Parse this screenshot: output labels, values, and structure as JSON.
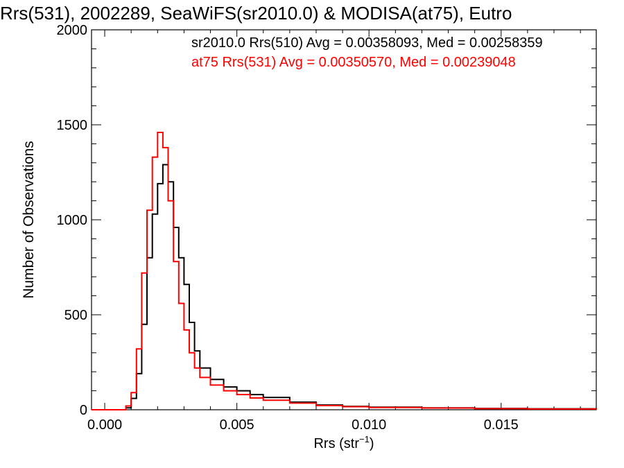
{
  "chart_data": {
    "type": "line",
    "title": "Rrs(531), 2002289, SeaWiFS(sr2010.0) & MODISA(at75), Eutro",
    "xlabel": "Rrs (str",
    "xlabel_sup": "−1",
    "xlabel_close": ")",
    "ylabel": "Number of Observations",
    "xlim": [
      -0.0005,
      0.0186
    ],
    "ylim": [
      0,
      2000
    ],
    "x_ticks": [
      0.0,
      0.005,
      0.01,
      0.015
    ],
    "x_tick_labels": [
      "0.000",
      "0.005",
      "0.010",
      "0.015"
    ],
    "y_ticks": [
      0,
      500,
      1000,
      1500,
      2000
    ],
    "y_tick_labels": [
      "0",
      "500",
      "1000",
      "1500",
      "2000"
    ],
    "legend_placement": "top-right",
    "grid": false,
    "series": [
      {
        "name": "sr2010.0 Rrs(510) Avg = 0.00358093, Med = 0.00258359",
        "color": "#000000",
        "x": [
          -0.0005,
          0.0005,
          0.0008,
          0.001,
          0.0012,
          0.0014,
          0.0016,
          0.0018,
          0.002,
          0.0022,
          0.0024,
          0.0026,
          0.0028,
          0.003,
          0.0032,
          0.0034,
          0.0036,
          0.004,
          0.0045,
          0.005,
          0.0055,
          0.006,
          0.007,
          0.008,
          0.009,
          0.01,
          0.012,
          0.014,
          0.016,
          0.0186
        ],
        "y": [
          0,
          0,
          10,
          60,
          190,
          450,
          800,
          1030,
          1190,
          1290,
          1200,
          960,
          800,
          660,
          460,
          310,
          220,
          160,
          120,
          100,
          80,
          65,
          40,
          25,
          18,
          14,
          10,
          7,
          5,
          3
        ]
      },
      {
        "name": "at75 Rrs(531) Avg = 0.00350570, Med = 0.00239048",
        "color": "#ff0000",
        "x": [
          -0.0005,
          0.0005,
          0.0008,
          0.001,
          0.0012,
          0.0014,
          0.0016,
          0.0018,
          0.002,
          0.0022,
          0.0024,
          0.0026,
          0.0028,
          0.003,
          0.0032,
          0.0034,
          0.0036,
          0.004,
          0.0045,
          0.005,
          0.0055,
          0.006,
          0.007,
          0.008,
          0.009,
          0.01,
          0.012,
          0.014,
          0.016,
          0.0186
        ],
        "y": [
          0,
          0,
          20,
          90,
          320,
          720,
          1050,
          1330,
          1460,
          1380,
          1100,
          780,
          560,
          420,
          300,
          220,
          170,
          130,
          100,
          80,
          62,
          50,
          35,
          22,
          16,
          12,
          9,
          6,
          4,
          2
        ]
      }
    ]
  }
}
